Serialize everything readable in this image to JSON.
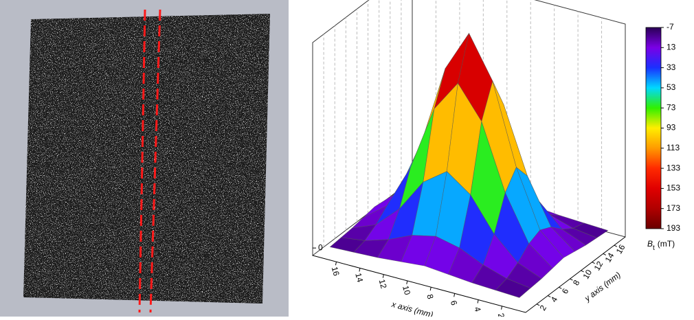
{
  "chart_data": {
    "type": "surface",
    "x_label": "x axis (mm)",
    "y_label": "y axis (mm)",
    "x": [
      1,
      3,
      5,
      7,
      9,
      11,
      13,
      15,
      17
    ],
    "y": [
      1,
      3,
      5,
      7,
      9,
      11,
      13,
      15,
      17
    ],
    "z": [
      [
        0,
        1,
        2,
        4,
        6,
        4,
        2,
        1,
        0
      ],
      [
        1,
        4,
        11,
        21,
        26,
        21,
        11,
        4,
        1
      ],
      [
        2,
        11,
        32,
        63,
        79,
        63,
        32,
        11,
        2
      ],
      [
        4,
        21,
        63,
        124,
        154,
        124,
        63,
        21,
        4
      ],
      [
        6,
        26,
        79,
        154,
        193,
        154,
        79,
        26,
        6
      ],
      [
        4,
        21,
        63,
        124,
        154,
        124,
        63,
        21,
        4
      ],
      [
        2,
        11,
        32,
        63,
        79,
        63,
        32,
        11,
        2
      ],
      [
        1,
        4,
        11,
        21,
        26,
        21,
        11,
        4,
        1
      ],
      [
        0,
        1,
        2,
        4,
        6,
        4,
        2,
        1,
        0
      ]
    ],
    "xlim": [
      0,
      18
    ],
    "ylim": [
      0,
      18
    ],
    "zlim": [
      -7,
      193
    ],
    "xticks": [
      16,
      14,
      12,
      10,
      8,
      6,
      4,
      2
    ],
    "yticks": [
      16,
      14,
      12,
      10,
      8,
      6,
      4,
      2
    ],
    "zticks": [
      0
    ],
    "grid": true,
    "colorbar_ticks": [
      -7,
      13,
      33,
      53,
      73,
      93,
      113,
      133,
      153,
      173,
      193
    ],
    "colorscale": [
      "#2a0055",
      "#7a00e6",
      "#1a30ff",
      "#00d8ff",
      "#30f000",
      "#ffee00",
      "#ff9a00",
      "#ff2a00",
      "#e00000",
      "#b00000",
      "#6a0000"
    ],
    "colorbar_label": "B",
    "colorbar_label_sub": "t",
    "colorbar_unit": "(mT)"
  }
}
